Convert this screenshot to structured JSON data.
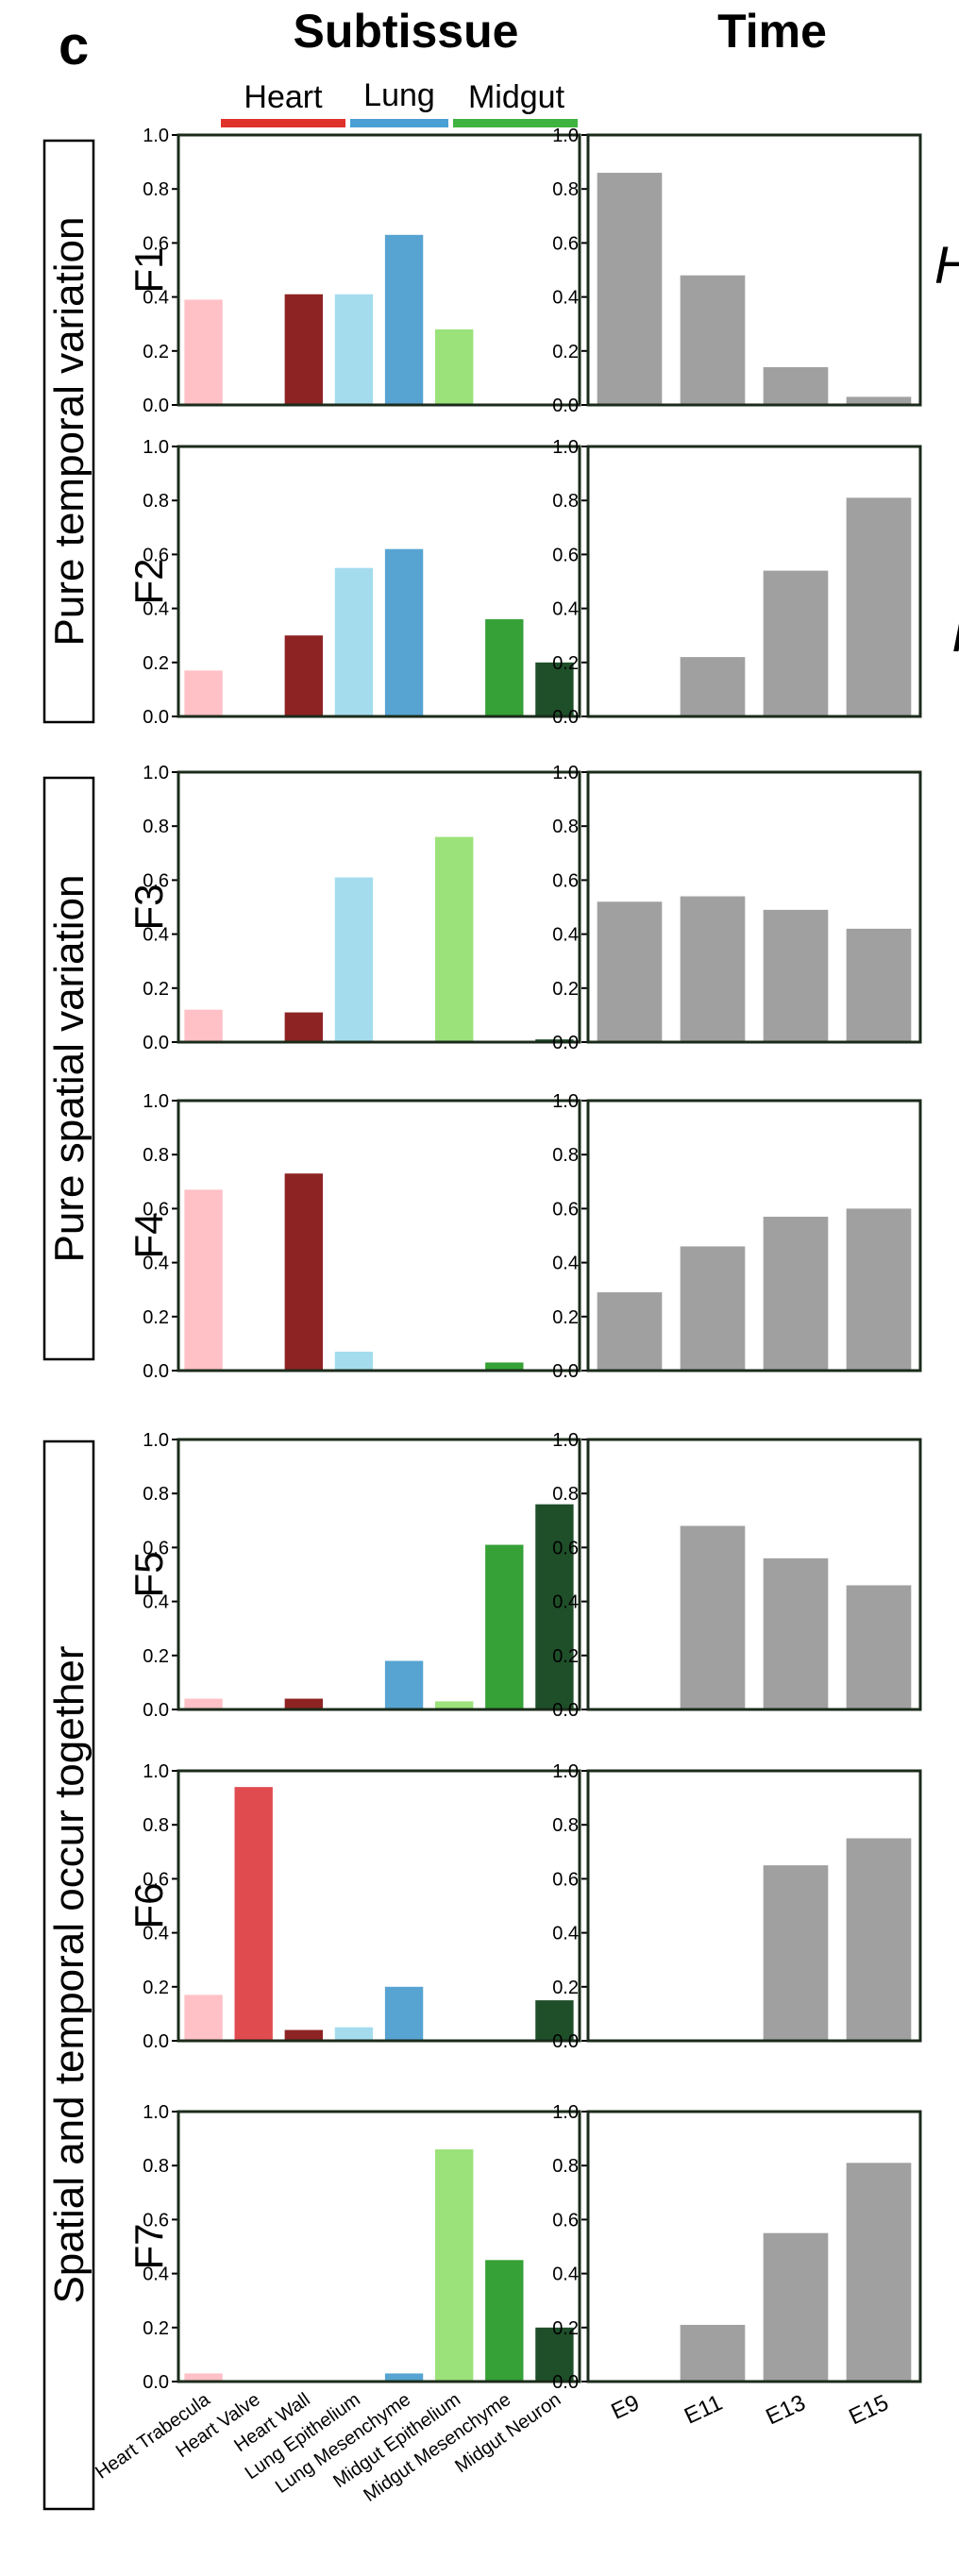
{
  "figure": {
    "panel_letter": "c",
    "headers": {
      "subtissue": "Subtissue",
      "time": "Time"
    },
    "tissue_groups": [
      {
        "name": "Heart",
        "color": "#e0312b"
      },
      {
        "name": "Lung",
        "color": "#4a9fd4"
      },
      {
        "name": "Midgut",
        "color": "#3fb33f"
      }
    ],
    "row_groups": [
      {
        "label": "Pure temporal variation"
      },
      {
        "label": "Pure spatial variation"
      },
      {
        "label": "Spatial and temporal occur together"
      }
    ],
    "clipped_letters": [
      "H",
      "I"
    ]
  },
  "chart_data": {
    "type": "bar",
    "y_ticks": [
      "0.0",
      "0.2",
      "0.4",
      "0.6",
      "0.8",
      "1.0"
    ],
    "ylim": [
      0,
      1
    ],
    "subtissue_categories": [
      "Heart Trabecula",
      "Heart Valve",
      "Heart Wall",
      "Lung Epithelium",
      "Lung Mesenchyme",
      "Midgut Epithelium",
      "Midgut Mesenchyme",
      "Midgut Neuron"
    ],
    "subtissue_colors": [
      "#ffc0c6",
      "#e04b50",
      "#8e2323",
      "#a4dcee",
      "#57a4d2",
      "#9be27a",
      "#36a136",
      "#1e4f29"
    ],
    "time_categories": [
      "E9",
      "E11",
      "E13",
      "E15"
    ],
    "time_color": "#a0a0a0",
    "factors": [
      {
        "name": "F1",
        "subtissue": [
          0.39,
          0.0,
          0.41,
          0.41,
          0.63,
          0.28,
          0.0,
          0.0
        ],
        "time": [
          0.86,
          0.48,
          0.14,
          0.03
        ]
      },
      {
        "name": "F2",
        "subtissue": [
          0.17,
          0.0,
          0.3,
          0.55,
          0.62,
          0.0,
          0.36,
          0.2
        ],
        "time": [
          0.0,
          0.22,
          0.54,
          0.81
        ]
      },
      {
        "name": "F3",
        "subtissue": [
          0.12,
          0.0,
          0.11,
          0.61,
          0.0,
          0.76,
          0.0,
          0.01
        ],
        "time": [
          0.52,
          0.54,
          0.49,
          0.42
        ]
      },
      {
        "name": "F4",
        "subtissue": [
          0.67,
          0.0,
          0.73,
          0.07,
          0.0,
          0.0,
          0.03,
          0.0
        ],
        "time": [
          0.29,
          0.46,
          0.57,
          0.6
        ]
      },
      {
        "name": "F5",
        "subtissue": [
          0.04,
          0.0,
          0.04,
          0.0,
          0.18,
          0.03,
          0.61,
          0.76
        ],
        "time": [
          0.0,
          0.68,
          0.56,
          0.46
        ]
      },
      {
        "name": "F6",
        "subtissue": [
          0.17,
          0.94,
          0.04,
          0.05,
          0.2,
          0.0,
          0.0,
          0.15
        ],
        "time": [
          0.0,
          0.0,
          0.65,
          0.75
        ]
      },
      {
        "name": "F7",
        "subtissue": [
          0.03,
          0.0,
          0.0,
          0.0,
          0.03,
          0.86,
          0.45,
          0.2
        ],
        "time": [
          0.0,
          0.21,
          0.55,
          0.81
        ]
      }
    ]
  }
}
